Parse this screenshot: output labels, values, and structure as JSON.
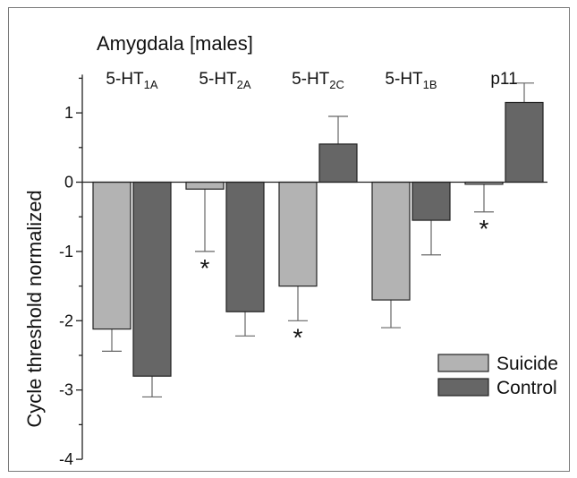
{
  "chart_data": {
    "type": "bar",
    "title": "Amygdala [males]",
    "ylabel": "Cycle threshold normalized",
    "xlabel": "",
    "ylim": [
      -4,
      1.5
    ],
    "yticks": [
      "1",
      "0",
      "-1",
      "-2",
      "-3",
      "-4"
    ],
    "categories": [
      {
        "base": "5-HT",
        "sub": "1A"
      },
      {
        "base": "5-HT",
        "sub": "2A"
      },
      {
        "base": "5-HT",
        "sub": "2C"
      },
      {
        "base": "5-HT",
        "sub": "1B"
      },
      {
        "base": "p11",
        "sub": ""
      }
    ],
    "series": [
      {
        "name": "Suicide",
        "color": "#b3b3b3",
        "values": [
          -2.12,
          -0.1,
          -1.5,
          -1.7,
          -0.03
        ],
        "errors": [
          0.32,
          0.9,
          0.5,
          0.4,
          0.4
        ]
      },
      {
        "name": "Control",
        "color": "#666666",
        "values": [
          -2.8,
          -1.87,
          0.55,
          -0.55,
          1.15
        ],
        "errors": [
          0.3,
          0.35,
          0.4,
          0.5,
          0.28
        ]
      }
    ],
    "significance": [
      {
        "category_index": 1,
        "label": "*"
      },
      {
        "category_index": 2,
        "label": "*"
      },
      {
        "category_index": 4,
        "label": "*"
      }
    ],
    "legend_position": "bottom-right",
    "grid": false
  }
}
